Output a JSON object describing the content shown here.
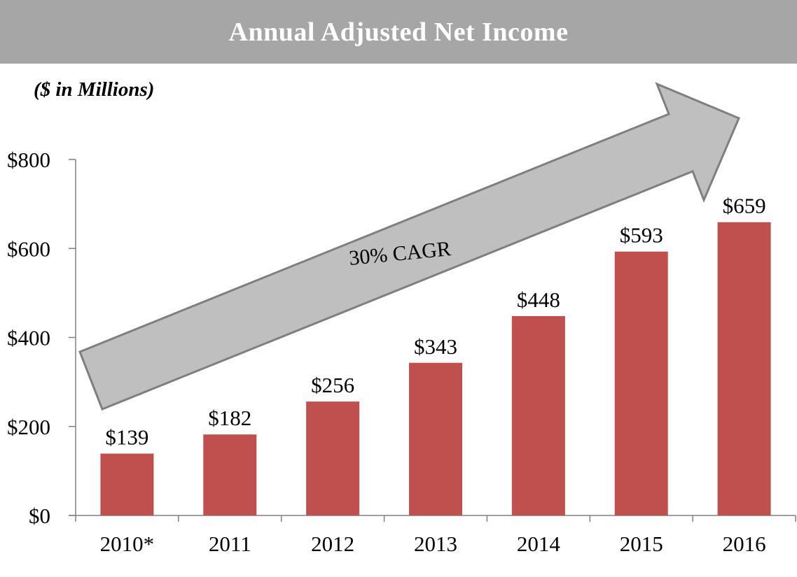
{
  "title": "Annual Adjusted Net Income",
  "units_label": "($ in Millions)",
  "arrow_label": "30% CAGR",
  "colors": {
    "bar": "#c0504d",
    "title_bar": "#a6a6a6",
    "arrow_fill": "#bfbfbf",
    "arrow_stroke": "#7f7f7f"
  },
  "chart_data": {
    "type": "bar",
    "title": "Annual Adjusted Net Income",
    "ylabel": "($ in Millions)",
    "xlabel": "",
    "categories": [
      "2010*",
      "2011",
      "2012",
      "2013",
      "2014",
      "2015",
      "2016"
    ],
    "values": [
      139,
      182,
      256,
      343,
      448,
      593,
      659
    ],
    "data_labels": [
      "$139",
      "$182",
      "$256",
      "$343",
      "$448",
      "$593",
      "$659"
    ],
    "ylim": [
      0,
      800
    ],
    "yticks": [
      0,
      200,
      400,
      600,
      800
    ],
    "ytick_labels": [
      "$0",
      "$200",
      "$400",
      "$600",
      "$800"
    ],
    "grid": false,
    "legend": "none",
    "annotation": "30% CAGR"
  }
}
